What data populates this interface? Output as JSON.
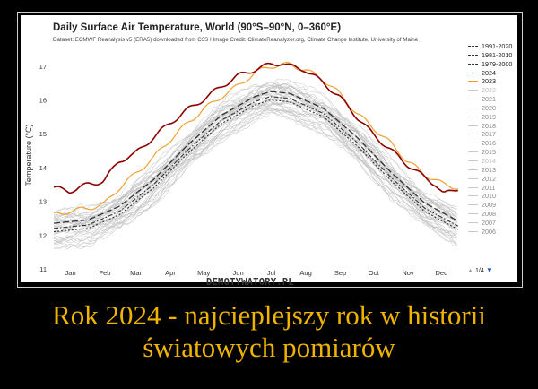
{
  "caption": "Rok 2024 - najcieplejszy rok w historii światowych pomiarów",
  "watermark": "DEMOTYWATORY.PL",
  "pager": {
    "up_icon": "▲",
    "text": "1/4",
    "down_icon": "▼"
  },
  "colors": {
    "2024": "#8b0000",
    "2023": "#f0a030",
    "mean_dash": "#333333",
    "history_grey": "#bfbfbf",
    "caption": "#f0b400"
  },
  "chart_data": {
    "type": "line",
    "title": "Daily Surface Air Temperature, World (90°S–90°N, 0–360°E)",
    "subtitle": "Dataset: ECMWF Reanalysis v5 (ERA5) downloaded from C3S I Image Credit: ClimateReanalyzer.org, Climate Change Institute, University of Maine",
    "ylabel": "Temperature (°C)",
    "xlabel": "",
    "ylim": [
      11,
      17.5
    ],
    "yticks": [
      11,
      12,
      13,
      14,
      15,
      16,
      17
    ],
    "x_categories": [
      "Jan",
      "Feb",
      "Mar",
      "Apr",
      "May",
      "Jun",
      "Jul",
      "Aug",
      "Sep",
      "Oct",
      "Nov",
      "Dec"
    ],
    "x_day_range": [
      1,
      366
    ],
    "grid": false,
    "legend_position": "right",
    "legend": [
      "1991-2020",
      "1981-2010",
      "1979-2000",
      "2024",
      "2023",
      "2022",
      "2021",
      "2020",
      "2019",
      "2018",
      "2017",
      "2016",
      "2015",
      "2014",
      "2013",
      "2012",
      "2011",
      "2010",
      "2009",
      "2008",
      "2007",
      "2006"
    ],
    "series": [
      {
        "name": "2024",
        "x": [
          1,
          15,
          32,
          46,
          60,
          74,
          91,
          105,
          121,
          135,
          152,
          166,
          182,
          196,
          206,
          213,
          227,
          244,
          258,
          274,
          288,
          305,
          319,
          335,
          345,
          352,
          366
        ],
        "y": [
          13.4,
          13.3,
          13.5,
          13.6,
          14.2,
          14.4,
          14.9,
          15.3,
          15.7,
          16.0,
          16.4,
          16.7,
          16.9,
          17.05,
          17.1,
          17.0,
          16.9,
          16.5,
          16.1,
          15.5,
          15.0,
          14.5,
          14.1,
          13.7,
          13.5,
          13.2,
          13.4
        ]
      },
      {
        "name": "2023",
        "x": [
          1,
          15,
          32,
          46,
          60,
          74,
          91,
          105,
          121,
          135,
          152,
          166,
          182,
          196,
          213,
          227,
          244,
          258,
          274,
          288,
          305,
          319,
          335,
          352,
          366
        ],
        "y": [
          12.6,
          12.7,
          12.8,
          12.9,
          13.4,
          13.8,
          14.3,
          14.8,
          15.3,
          15.7,
          16.1,
          16.4,
          16.8,
          17.0,
          17.05,
          16.9,
          16.6,
          16.2,
          15.6,
          15.2,
          14.7,
          14.2,
          13.8,
          13.5,
          13.4
        ]
      },
      {
        "name": "1991-2020",
        "x": [
          1,
          32,
          60,
          91,
          121,
          152,
          182,
          196,
          213,
          244,
          274,
          305,
          335,
          366
        ],
        "y": [
          12.35,
          12.45,
          12.85,
          13.65,
          14.65,
          15.55,
          16.1,
          16.25,
          16.2,
          15.75,
          14.9,
          13.85,
          12.95,
          12.4
        ]
      },
      {
        "name": "1981-2010",
        "x": [
          1,
          32,
          60,
          91,
          121,
          152,
          182,
          196,
          213,
          244,
          274,
          305,
          335,
          366
        ],
        "y": [
          12.2,
          12.3,
          12.7,
          13.5,
          14.5,
          15.4,
          15.95,
          16.1,
          16.05,
          15.6,
          14.75,
          13.7,
          12.8,
          12.25
        ]
      },
      {
        "name": "1979-2000",
        "x": [
          1,
          32,
          60,
          91,
          121,
          152,
          182,
          196,
          213,
          244,
          274,
          305,
          335,
          366
        ],
        "y": [
          12.1,
          12.2,
          12.6,
          13.4,
          14.4,
          15.3,
          15.85,
          16.0,
          15.95,
          15.5,
          14.65,
          13.6,
          12.7,
          12.15
        ]
      }
    ]
  }
}
